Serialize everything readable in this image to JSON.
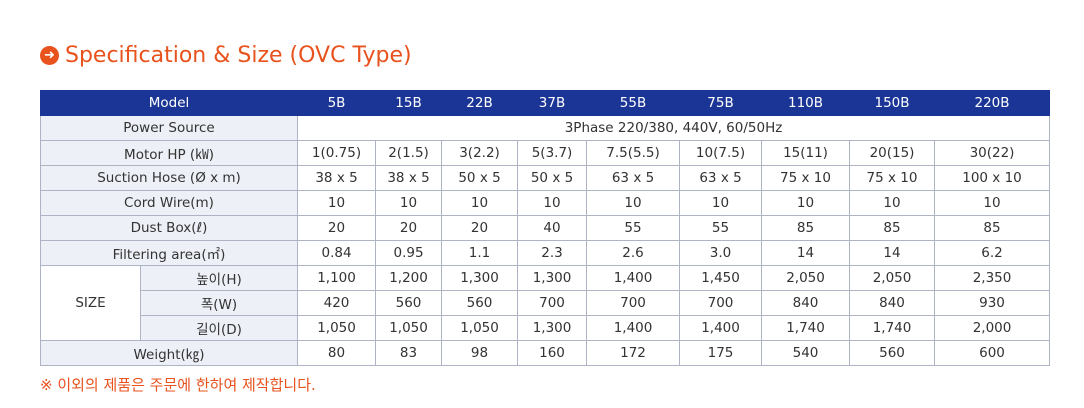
{
  "title": "Specification & Size (OVC Type)",
  "icon": "arrow-right-circle-icon",
  "colors": {
    "accent": "#e8521c",
    "header_bg": "#1b3596",
    "label_bg": "#eef0f7"
  },
  "header": [
    "Model",
    "5B",
    "15B",
    "22B",
    "37B",
    "55B",
    "75B",
    "110B",
    "150B",
    "220B"
  ],
  "power_source": {
    "label": "Power Source",
    "value": "3Phase 220/380, 440V, 60/50Hz"
  },
  "rows": [
    {
      "label": "Motor HP (㎾)",
      "values": [
        "1(0.75)",
        "2(1.5)",
        "3(2.2)",
        "5(3.7)",
        "7.5(5.5)",
        "10(7.5)",
        "15(11)",
        "20(15)",
        "30(22)"
      ]
    },
    {
      "label": "Suction Hose (Ø x m)",
      "values": [
        "38 x 5",
        "38 x 5",
        "50 x 5",
        "50 x 5",
        "63 x 5",
        "63 x 5",
        "75 x 10",
        "75 x 10",
        "100 x 10"
      ]
    },
    {
      "label": "Cord Wire(m)",
      "values": [
        "10",
        "10",
        "10",
        "10",
        "10",
        "10",
        "10",
        "10",
        "10"
      ]
    },
    {
      "label": "Dust Box(ℓ)",
      "values": [
        "20",
        "20",
        "20",
        "40",
        "55",
        "55",
        "85",
        "85",
        "85"
      ]
    },
    {
      "label": "Filtering area(㎡)",
      "values": [
        "0.84",
        "0.95",
        "1.1",
        "2.3",
        "2.6",
        "3.0",
        "14",
        "14",
        "6.2"
      ]
    }
  ],
  "size": {
    "label": "SIZE",
    "rows": [
      {
        "label": "높이(H)",
        "values": [
          "1,100",
          "1,200",
          "1,300",
          "1,300",
          "1,400",
          "1,450",
          "2,050",
          "2,050",
          "2,350"
        ]
      },
      {
        "label": "폭(W)",
        "values": [
          "420",
          "560",
          "560",
          "700",
          "700",
          "700",
          "840",
          "840",
          "930"
        ]
      },
      {
        "label": "길이(D)",
        "values": [
          "1,050",
          "1,050",
          "1,050",
          "1,300",
          "1,400",
          "1,400",
          "1,740",
          "1,740",
          "2,000"
        ]
      }
    ]
  },
  "weight": {
    "label": "Weight(㎏)",
    "values": [
      "80",
      "83",
      "98",
      "160",
      "172",
      "175",
      "540",
      "560",
      "600"
    ]
  },
  "note": "※ 이외의 제품은 주문에 한하여 제작합니다."
}
